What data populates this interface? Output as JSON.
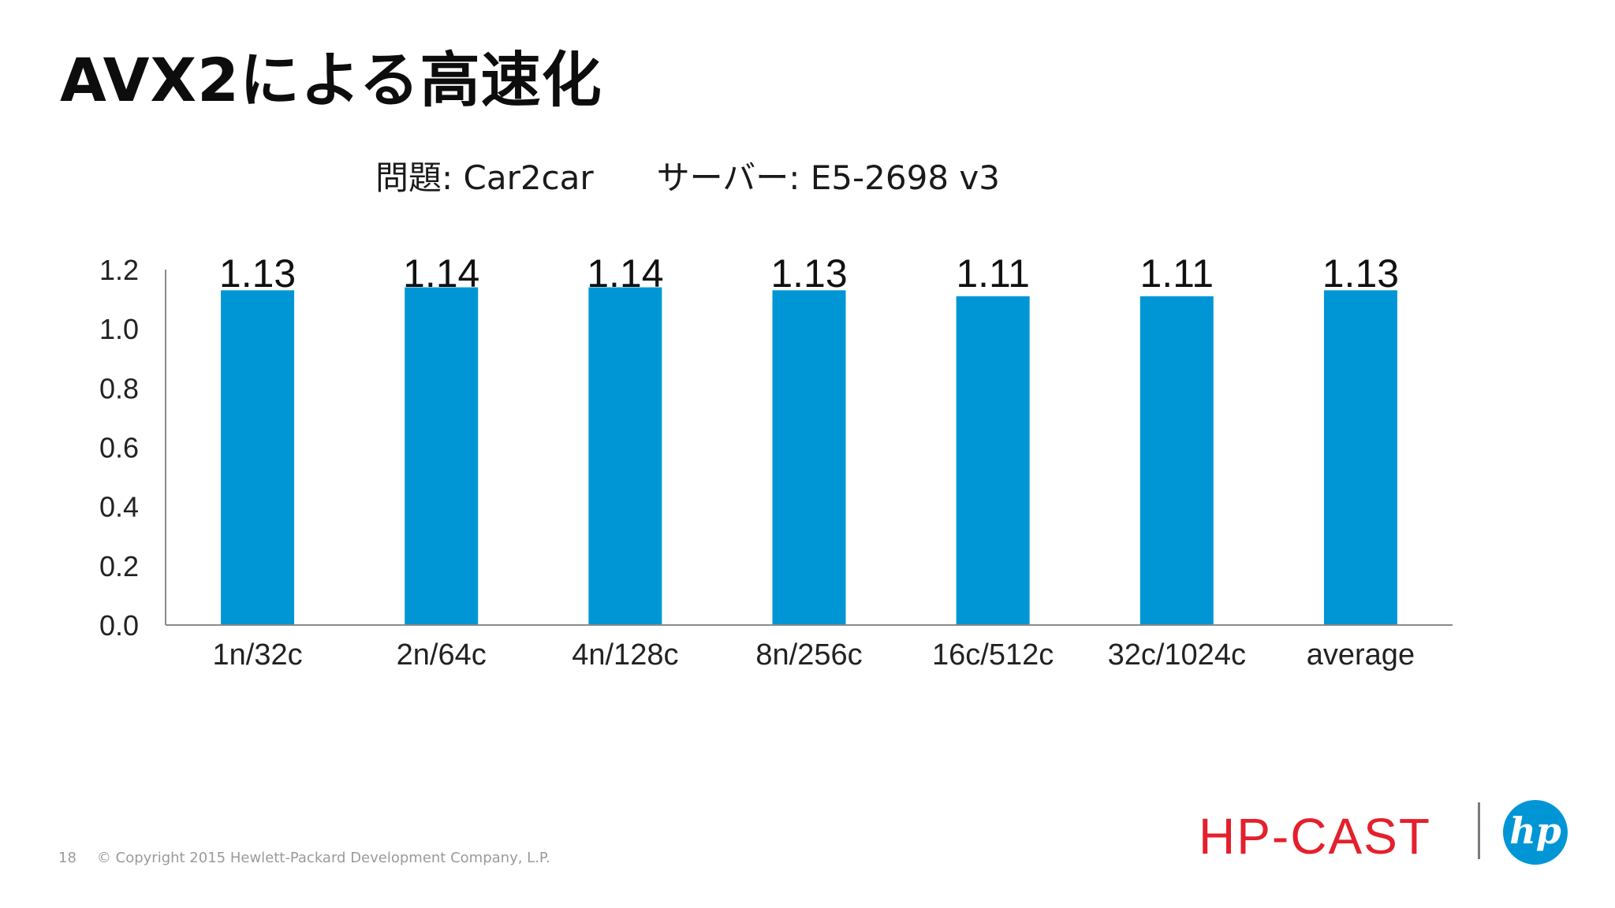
{
  "slide": {
    "title": "AVX2による高速化",
    "subtitle_problem": "問題: Car2car",
    "subtitle_server": "サーバー: E5-2698 v3"
  },
  "chart_data": {
    "type": "bar",
    "title": "",
    "xlabel": "",
    "ylabel": "",
    "categories": [
      "1n/32c",
      "2n/64c",
      "4n/128c",
      "8n/256c",
      "16c/512c",
      "32c/1024c",
      "average"
    ],
    "values": [
      1.13,
      1.14,
      1.14,
      1.13,
      1.11,
      1.11,
      1.13
    ],
    "value_labels": [
      "1.13",
      "1.14",
      "1.14",
      "1.13",
      "1.11",
      "1.11",
      "1.13"
    ],
    "y_ticks": [
      "0.0",
      "0.2",
      "0.4",
      "0.6",
      "0.8",
      "1.0",
      "1.2"
    ],
    "ylim": [
      0,
      1.2
    ],
    "grid": false,
    "bar_color": "#0096d6"
  },
  "footer": {
    "page_number": "18",
    "copyright": "© Copyright 2015 Hewlett-Packard Development Company, L.P."
  },
  "branding": {
    "event_logo_text": "HP-CAST",
    "company_logo_text": "hp",
    "event_color": "#e4202c",
    "company_color": "#0096d6"
  }
}
